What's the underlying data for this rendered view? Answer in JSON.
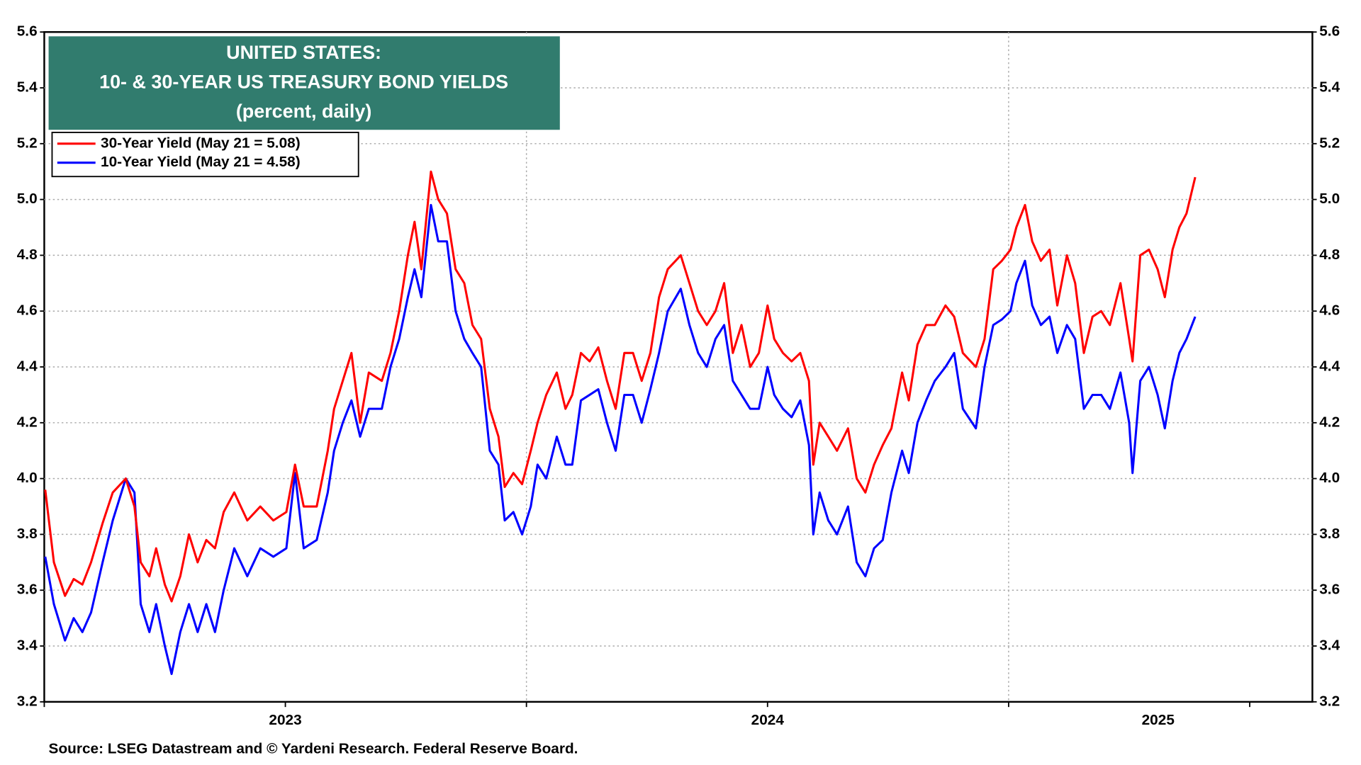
{
  "chart_data": {
    "type": "line",
    "title": [
      "UNITED STATES:",
      "10- & 30-YEAR US TREASURY BOND YIELDS",
      "(percent, daily)"
    ],
    "source": "Source: LSEG Datastream and © Yardeni Research. Federal Reserve Board.",
    "xlim": [
      2023.0,
      2025.63
    ],
    "xticks": [
      {
        "value": 2023.5,
        "label": "2023"
      },
      {
        "value": 2024.5,
        "label": "2024"
      },
      {
        "value": 2025.31,
        "label": "2025"
      }
    ],
    "xminorticks": [
      2023,
      2023.5,
      2024,
      2024.5,
      2025,
      2025.5
    ],
    "vgrid": [
      2024,
      2025
    ],
    "ylim": [
      3.2,
      5.6
    ],
    "yticks": [
      3.2,
      3.4,
      3.6,
      3.8,
      {
        "value": 4.0,
        "label": "4.0"
      },
      4.2,
      4.4,
      4.6,
      4.8,
      {
        "value": 5.0,
        "label": "5.0"
      },
      5.2,
      5.4,
      5.6
    ],
    "y2lim": [
      3.2,
      5.6
    ],
    "y2ticks": [
      3.2,
      3.4,
      3.6,
      3.8,
      {
        "value": 4.0,
        "label": "4.0"
      },
      4.2,
      4.4,
      4.6,
      4.8,
      {
        "value": 5.0,
        "label": "5.0"
      },
      5.2,
      5.4,
      5.6
    ],
    "grid": true,
    "title_box_color": "#317c6e",
    "legend": "upper left",
    "x": [
      2023.002,
      2023.02,
      2023.043,
      2023.061,
      2023.079,
      2023.097,
      2023.121,
      2023.142,
      2023.169,
      2023.187,
      2023.2,
      2023.218,
      2023.232,
      2023.25,
      2023.264,
      2023.282,
      2023.3,
      2023.318,
      2023.336,
      2023.354,
      2023.372,
      2023.394,
      2023.421,
      2023.448,
      2023.475,
      2023.502,
      2023.52,
      2023.538,
      2023.565,
      2023.588,
      2023.601,
      2023.619,
      2023.637,
      2023.655,
      2023.673,
      2023.7,
      2023.718,
      2023.736,
      2023.754,
      2023.768,
      2023.782,
      2023.802,
      2023.817,
      2023.835,
      2023.853,
      2023.871,
      2023.888,
      2023.906,
      2023.924,
      2023.942,
      2023.955,
      2023.973,
      2023.991,
      2024.009,
      2024.023,
      2024.041,
      2024.063,
      2024.081,
      2024.095,
      2024.113,
      2024.131,
      2024.149,
      2024.167,
      2024.185,
      2024.203,
      2024.221,
      2024.239,
      2024.257,
      2024.275,
      2024.293,
      2024.32,
      2024.338,
      2024.356,
      2024.374,
      2024.392,
      2024.41,
      2024.428,
      2024.446,
      2024.464,
      2024.482,
      2024.5,
      2024.514,
      2024.532,
      2024.55,
      2024.568,
      2024.586,
      2024.595,
      2024.608,
      2024.626,
      2024.644,
      2024.667,
      2024.685,
      2024.703,
      2024.721,
      2024.739,
      2024.757,
      2024.779,
      2024.793,
      2024.811,
      2024.829,
      2024.847,
      2024.869,
      2024.887,
      2024.905,
      2024.932,
      2024.95,
      2024.968,
      2024.986,
      2025.004,
      2025.016,
      2025.034,
      2025.049,
      2025.067,
      2025.085,
      2025.101,
      2025.121,
      2025.138,
      2025.156,
      2025.174,
      2025.192,
      2025.21,
      2025.232,
      2025.25,
      2025.257,
      2025.273,
      2025.291,
      2025.309,
      2025.324,
      2025.34,
      2025.354,
      2025.369,
      2025.387
    ],
    "series": [
      {
        "name": "30-Year Yield (May 21 = 5.08)",
        "color": "#ff0000",
        "values": [
          3.96,
          3.7,
          3.58,
          3.64,
          3.62,
          3.7,
          3.84,
          3.95,
          4.0,
          3.9,
          3.7,
          3.65,
          3.75,
          3.62,
          3.56,
          3.65,
          3.8,
          3.7,
          3.78,
          3.75,
          3.88,
          3.95,
          3.85,
          3.9,
          3.85,
          3.88,
          4.05,
          3.9,
          3.9,
          4.1,
          4.25,
          4.35,
          4.45,
          4.2,
          4.38,
          4.35,
          4.45,
          4.6,
          4.8,
          4.92,
          4.75,
          5.1,
          5.0,
          4.95,
          4.75,
          4.7,
          4.55,
          4.5,
          4.25,
          4.15,
          3.97,
          4.02,
          3.98,
          4.1,
          4.2,
          4.3,
          4.38,
          4.25,
          4.3,
          4.45,
          4.42,
          4.47,
          4.35,
          4.25,
          4.45,
          4.45,
          4.35,
          4.45,
          4.65,
          4.75,
          4.8,
          4.7,
          4.6,
          4.55,
          4.6,
          4.7,
          4.45,
          4.55,
          4.4,
          4.45,
          4.62,
          4.5,
          4.45,
          4.42,
          4.45,
          4.35,
          4.05,
          4.2,
          4.15,
          4.1,
          4.18,
          4.0,
          3.95,
          4.05,
          4.12,
          4.18,
          4.38,
          4.28,
          4.48,
          4.55,
          4.55,
          4.62,
          4.58,
          4.45,
          4.4,
          4.5,
          4.75,
          4.78,
          4.82,
          4.9,
          4.98,
          4.85,
          4.78,
          4.82,
          4.62,
          4.8,
          4.7,
          4.45,
          4.58,
          4.6,
          4.55,
          4.7,
          4.5,
          4.42,
          4.8,
          4.82,
          4.75,
          4.65,
          4.82,
          4.9,
          4.95,
          5.08
        ]
      },
      {
        "name": "10-Year Yield (May 21 = 4.58)",
        "color": "#0000ff",
        "values": [
          3.72,
          3.55,
          3.42,
          3.5,
          3.45,
          3.52,
          3.7,
          3.85,
          4.0,
          3.95,
          3.55,
          3.45,
          3.55,
          3.4,
          3.3,
          3.45,
          3.55,
          3.45,
          3.55,
          3.45,
          3.6,
          3.75,
          3.65,
          3.75,
          3.72,
          3.75,
          4.02,
          3.75,
          3.78,
          3.95,
          4.1,
          4.2,
          4.28,
          4.15,
          4.25,
          4.25,
          4.4,
          4.5,
          4.65,
          4.75,
          4.65,
          4.98,
          4.85,
          4.85,
          4.6,
          4.5,
          4.45,
          4.4,
          4.1,
          4.05,
          3.85,
          3.88,
          3.8,
          3.9,
          4.05,
          4.0,
          4.15,
          4.05,
          4.05,
          4.28,
          4.3,
          4.32,
          4.2,
          4.1,
          4.3,
          4.3,
          4.2,
          4.32,
          4.45,
          4.6,
          4.68,
          4.55,
          4.45,
          4.4,
          4.5,
          4.55,
          4.35,
          4.3,
          4.25,
          4.25,
          4.4,
          4.3,
          4.25,
          4.22,
          4.28,
          4.12,
          3.8,
          3.95,
          3.85,
          3.8,
          3.9,
          3.7,
          3.65,
          3.75,
          3.78,
          3.95,
          4.1,
          4.02,
          4.2,
          4.28,
          4.35,
          4.4,
          4.45,
          4.25,
          4.18,
          4.4,
          4.55,
          4.57,
          4.6,
          4.7,
          4.78,
          4.62,
          4.55,
          4.58,
          4.45,
          4.55,
          4.5,
          4.25,
          4.3,
          4.3,
          4.25,
          4.38,
          4.2,
          4.02,
          4.35,
          4.4,
          4.3,
          4.18,
          4.35,
          4.45,
          4.5,
          4.58
        ]
      }
    ]
  }
}
